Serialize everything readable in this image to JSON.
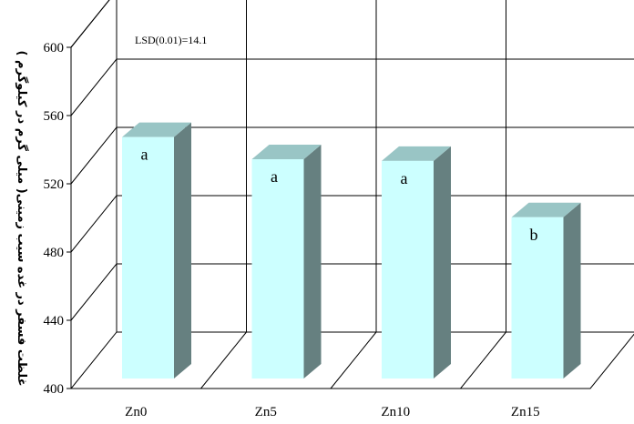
{
  "chart_data": {
    "type": "bar",
    "categories": [
      "Zn0",
      "Zn5",
      "Zn10",
      "Zn15"
    ],
    "values": [
      541,
      528,
      527,
      494
    ],
    "letters": [
      "a",
      "a",
      "a",
      "b"
    ],
    "annotation": "LSD(0.01)=14.1",
    "ylabel": "غلظت فسفر در غده سیب زمینی( میلی گرم در کیلوگرم )",
    "xlabel": "",
    "ylim": [
      400,
      600
    ],
    "yticks": [
      "400",
      "440",
      "480",
      "520",
      "560",
      "600"
    ],
    "grid": true,
    "style": "3d",
    "colors": {
      "bar_front": "#ccffff",
      "bar_top": "#99c5c5",
      "bar_side": "#668080"
    }
  }
}
